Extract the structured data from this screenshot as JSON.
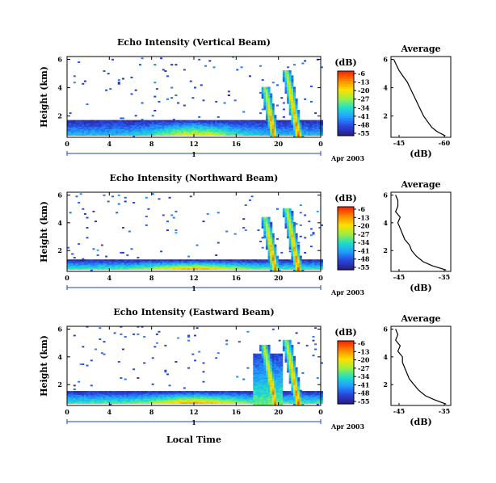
{
  "figure": {
    "xlabel": "Local Time",
    "date_label": "Apr 2003",
    "day_label": "1",
    "height_label": "Height (km)",
    "avg_title": "Average",
    "avg_xlabel": "(dB)",
    "colorbar_title": "(dB)"
  },
  "chart_data": [
    {
      "type": "heatmap",
      "title": "Echo Intensity (Vertical Beam)",
      "ylabel": "Height (km)",
      "xlabel": "Local Time",
      "xticks": [
        "0",
        "4",
        "8",
        "12",
        "16",
        "20",
        "0"
      ],
      "yticks": [
        "2",
        "4",
        "6"
      ],
      "xlim": [
        0,
        24
      ],
      "ylim": [
        0.5,
        6.2
      ],
      "colorbar": {
        "unit": "(dB)",
        "ticks": [
          "-6",
          "-13",
          "-20",
          "-27",
          "-34",
          "-41",
          "-48",
          "-55"
        ],
        "colors": [
          "#ff2400",
          "#ff8a00",
          "#ffe000",
          "#9ef040",
          "#20e0c8",
          "#20a0ff",
          "#2848e0",
          "#28208a"
        ]
      },
      "features": [
        {
          "kind": "layer",
          "t_start": 0,
          "t_end": 24,
          "h_bottom": 0.6,
          "h_top": 1.7,
          "intensity": "weak"
        },
        {
          "kind": "plume",
          "t": 19.5,
          "h_top": 4.0,
          "intensity": "strong"
        },
        {
          "kind": "plume",
          "t": 21.8,
          "h_top": 5.2,
          "intensity": "strong"
        }
      ],
      "average_profile": {
        "title": "Average",
        "xlabel": "(dB)",
        "xticks": [
          "-45",
          "-60"
        ],
        "yticks": [
          "2",
          "4",
          "6"
        ],
        "xlim": [
          -40,
          -62
        ],
        "ylim": [
          0.5,
          6.2
        ],
        "height_km": [
          6.0,
          5.6,
          5.2,
          4.8,
          4.4,
          4.0,
          3.6,
          3.2,
          2.8,
          2.4,
          2.0,
          1.6,
          1.2,
          0.9,
          0.6
        ],
        "db": [
          -41,
          -42,
          -43,
          -44.5,
          -46,
          -47,
          -48,
          -49,
          -50,
          -51,
          -52,
          -53.5,
          -55,
          -57,
          -60
        ]
      }
    },
    {
      "type": "heatmap",
      "title": "Echo Intensity (Northward Beam)",
      "ylabel": "Height (km)",
      "xlabel": "Local Time",
      "xticks": [
        "0",
        "4",
        "8",
        "12",
        "16",
        "20",
        "0"
      ],
      "yticks": [
        "2",
        "4",
        "6"
      ],
      "xlim": [
        0,
        24
      ],
      "ylim": [
        0.5,
        6.2
      ],
      "colorbar": {
        "unit": "(dB)",
        "ticks": [
          "-6",
          "-13",
          "-20",
          "-27",
          "-34",
          "-41",
          "-48",
          "-55"
        ],
        "colors": [
          "#ff2400",
          "#ff8a00",
          "#ffe000",
          "#9ef040",
          "#20e0c8",
          "#20a0ff",
          "#2848e0",
          "#28208a"
        ]
      },
      "features": [
        {
          "kind": "layer",
          "t_start": 0,
          "t_end": 24,
          "h_bottom": 0.6,
          "h_top": 1.3,
          "intensity": "moderate"
        },
        {
          "kind": "plume",
          "t": 19.6,
          "h_top": 4.4,
          "intensity": "strong"
        },
        {
          "kind": "plume",
          "t": 21.8,
          "h_top": 5.0,
          "intensity": "strong"
        }
      ],
      "average_profile": {
        "title": "Average",
        "xlabel": "(dB)",
        "xticks": [
          "-45",
          "-35"
        ],
        "yticks": [
          "2",
          "4",
          "6"
        ],
        "xlim": [
          -47,
          -34
        ],
        "ylim": [
          0.5,
          6.2
        ],
        "height_km": [
          6.0,
          5.6,
          5.2,
          4.8,
          4.4,
          4.0,
          3.6,
          3.2,
          2.8,
          2.4,
          2.0,
          1.6,
          1.2,
          0.9,
          0.6
        ],
        "db": [
          -46,
          -45.5,
          -45.5,
          -46,
          -45,
          -45.5,
          -45,
          -44.5,
          -44,
          -43,
          -42.5,
          -41.5,
          -40,
          -38,
          -35
        ]
      }
    },
    {
      "type": "heatmap",
      "title": "Echo Intensity (Eastward Beam)",
      "ylabel": "Height (km)",
      "xlabel": "Local Time",
      "xticks": [
        "0",
        "4",
        "8",
        "12",
        "16",
        "20",
        "0"
      ],
      "yticks": [
        "2",
        "4",
        "6"
      ],
      "xlim": [
        0,
        24
      ],
      "ylim": [
        0.5,
        6.2
      ],
      "colorbar": {
        "unit": "(dB)",
        "ticks": [
          "-6",
          "-13",
          "-20",
          "-27",
          "-34",
          "-41",
          "-48",
          "-55"
        ],
        "colors": [
          "#ff2400",
          "#ff8a00",
          "#ffe000",
          "#9ef040",
          "#20e0c8",
          "#20a0ff",
          "#2848e0",
          "#28208a"
        ]
      },
      "features": [
        {
          "kind": "layer",
          "t_start": 0,
          "t_end": 24,
          "h_bottom": 0.6,
          "h_top": 1.5,
          "intensity": "moderate"
        },
        {
          "kind": "region",
          "t_start": 17.5,
          "t_end": 20.2,
          "h_top": 4.2,
          "intensity": "moderate"
        },
        {
          "kind": "plume",
          "t": 19.6,
          "h_top": 4.8,
          "intensity": "strong"
        },
        {
          "kind": "plume",
          "t": 21.8,
          "h_top": 5.2,
          "intensity": "strong"
        }
      ],
      "average_profile": {
        "title": "Average",
        "xlabel": "(dB)",
        "xticks": [
          "-45",
          "-35"
        ],
        "yticks": [
          "2",
          "4",
          "6"
        ],
        "xlim": [
          -47,
          -34
        ],
        "ylim": [
          0.5,
          6.2
        ],
        "height_km": [
          6.0,
          5.6,
          5.2,
          4.8,
          4.4,
          4.0,
          3.6,
          3.2,
          2.8,
          2.4,
          2.0,
          1.6,
          1.2,
          0.9,
          0.6
        ],
        "db": [
          -46,
          -45.5,
          -46,
          -45,
          -45.5,
          -44.5,
          -44.5,
          -44,
          -43.5,
          -43,
          -42,
          -41,
          -39.5,
          -37.5,
          -35
        ]
      }
    }
  ]
}
